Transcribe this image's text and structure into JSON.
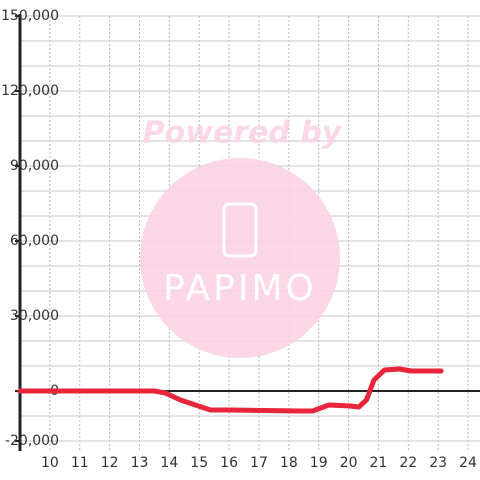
{
  "chart_data": {
    "type": "line",
    "x": [
      9,
      13.5,
      13.87,
      14.37,
      14.87,
      15.38,
      16.05,
      18.4,
      18.8,
      19.34,
      20.07,
      20.34,
      20.6,
      20.85,
      21.2,
      21.7,
      22.1,
      23.1
    ],
    "series": [
      {
        "color": "#e8253a",
        "values": [
          0,
          0,
          -800,
          -3600,
          -5600,
          -7600,
          -7600,
          -8000,
          -8000,
          -5600,
          -6000,
          -6400,
          -3600,
          4400,
          8400,
          8800,
          8000,
          8000
        ]
      }
    ],
    "xlim": [
      9,
      24.4
    ],
    "xticks": [
      10,
      11,
      12,
      13,
      14,
      15,
      16,
      17,
      18,
      19,
      20,
      21,
      22,
      23,
      24
    ],
    "ylim": [
      -24000,
      150000
    ],
    "yticks": [
      {
        "value": 150000,
        "label": "150,000"
      },
      {
        "value": 120000,
        "label": "120,000"
      },
      {
        "value": 90000,
        "label": "90,000"
      },
      {
        "value": 60000,
        "label": "60,000"
      },
      {
        "value": 30000,
        "label": "30,000"
      },
      0,
      {
        "value": -20000,
        "label": "-20,000"
      }
    ],
    "ygrid": [
      -20000,
      -10000,
      0,
      10000,
      20000,
      30000,
      40000,
      50000,
      60000,
      70000,
      80000,
      90000,
      100000,
      110000,
      120000,
      130000,
      140000,
      150000
    ],
    "grid": true,
    "watermark": {
      "top": "Powered by",
      "bottom": "PAPIMO"
    }
  }
}
